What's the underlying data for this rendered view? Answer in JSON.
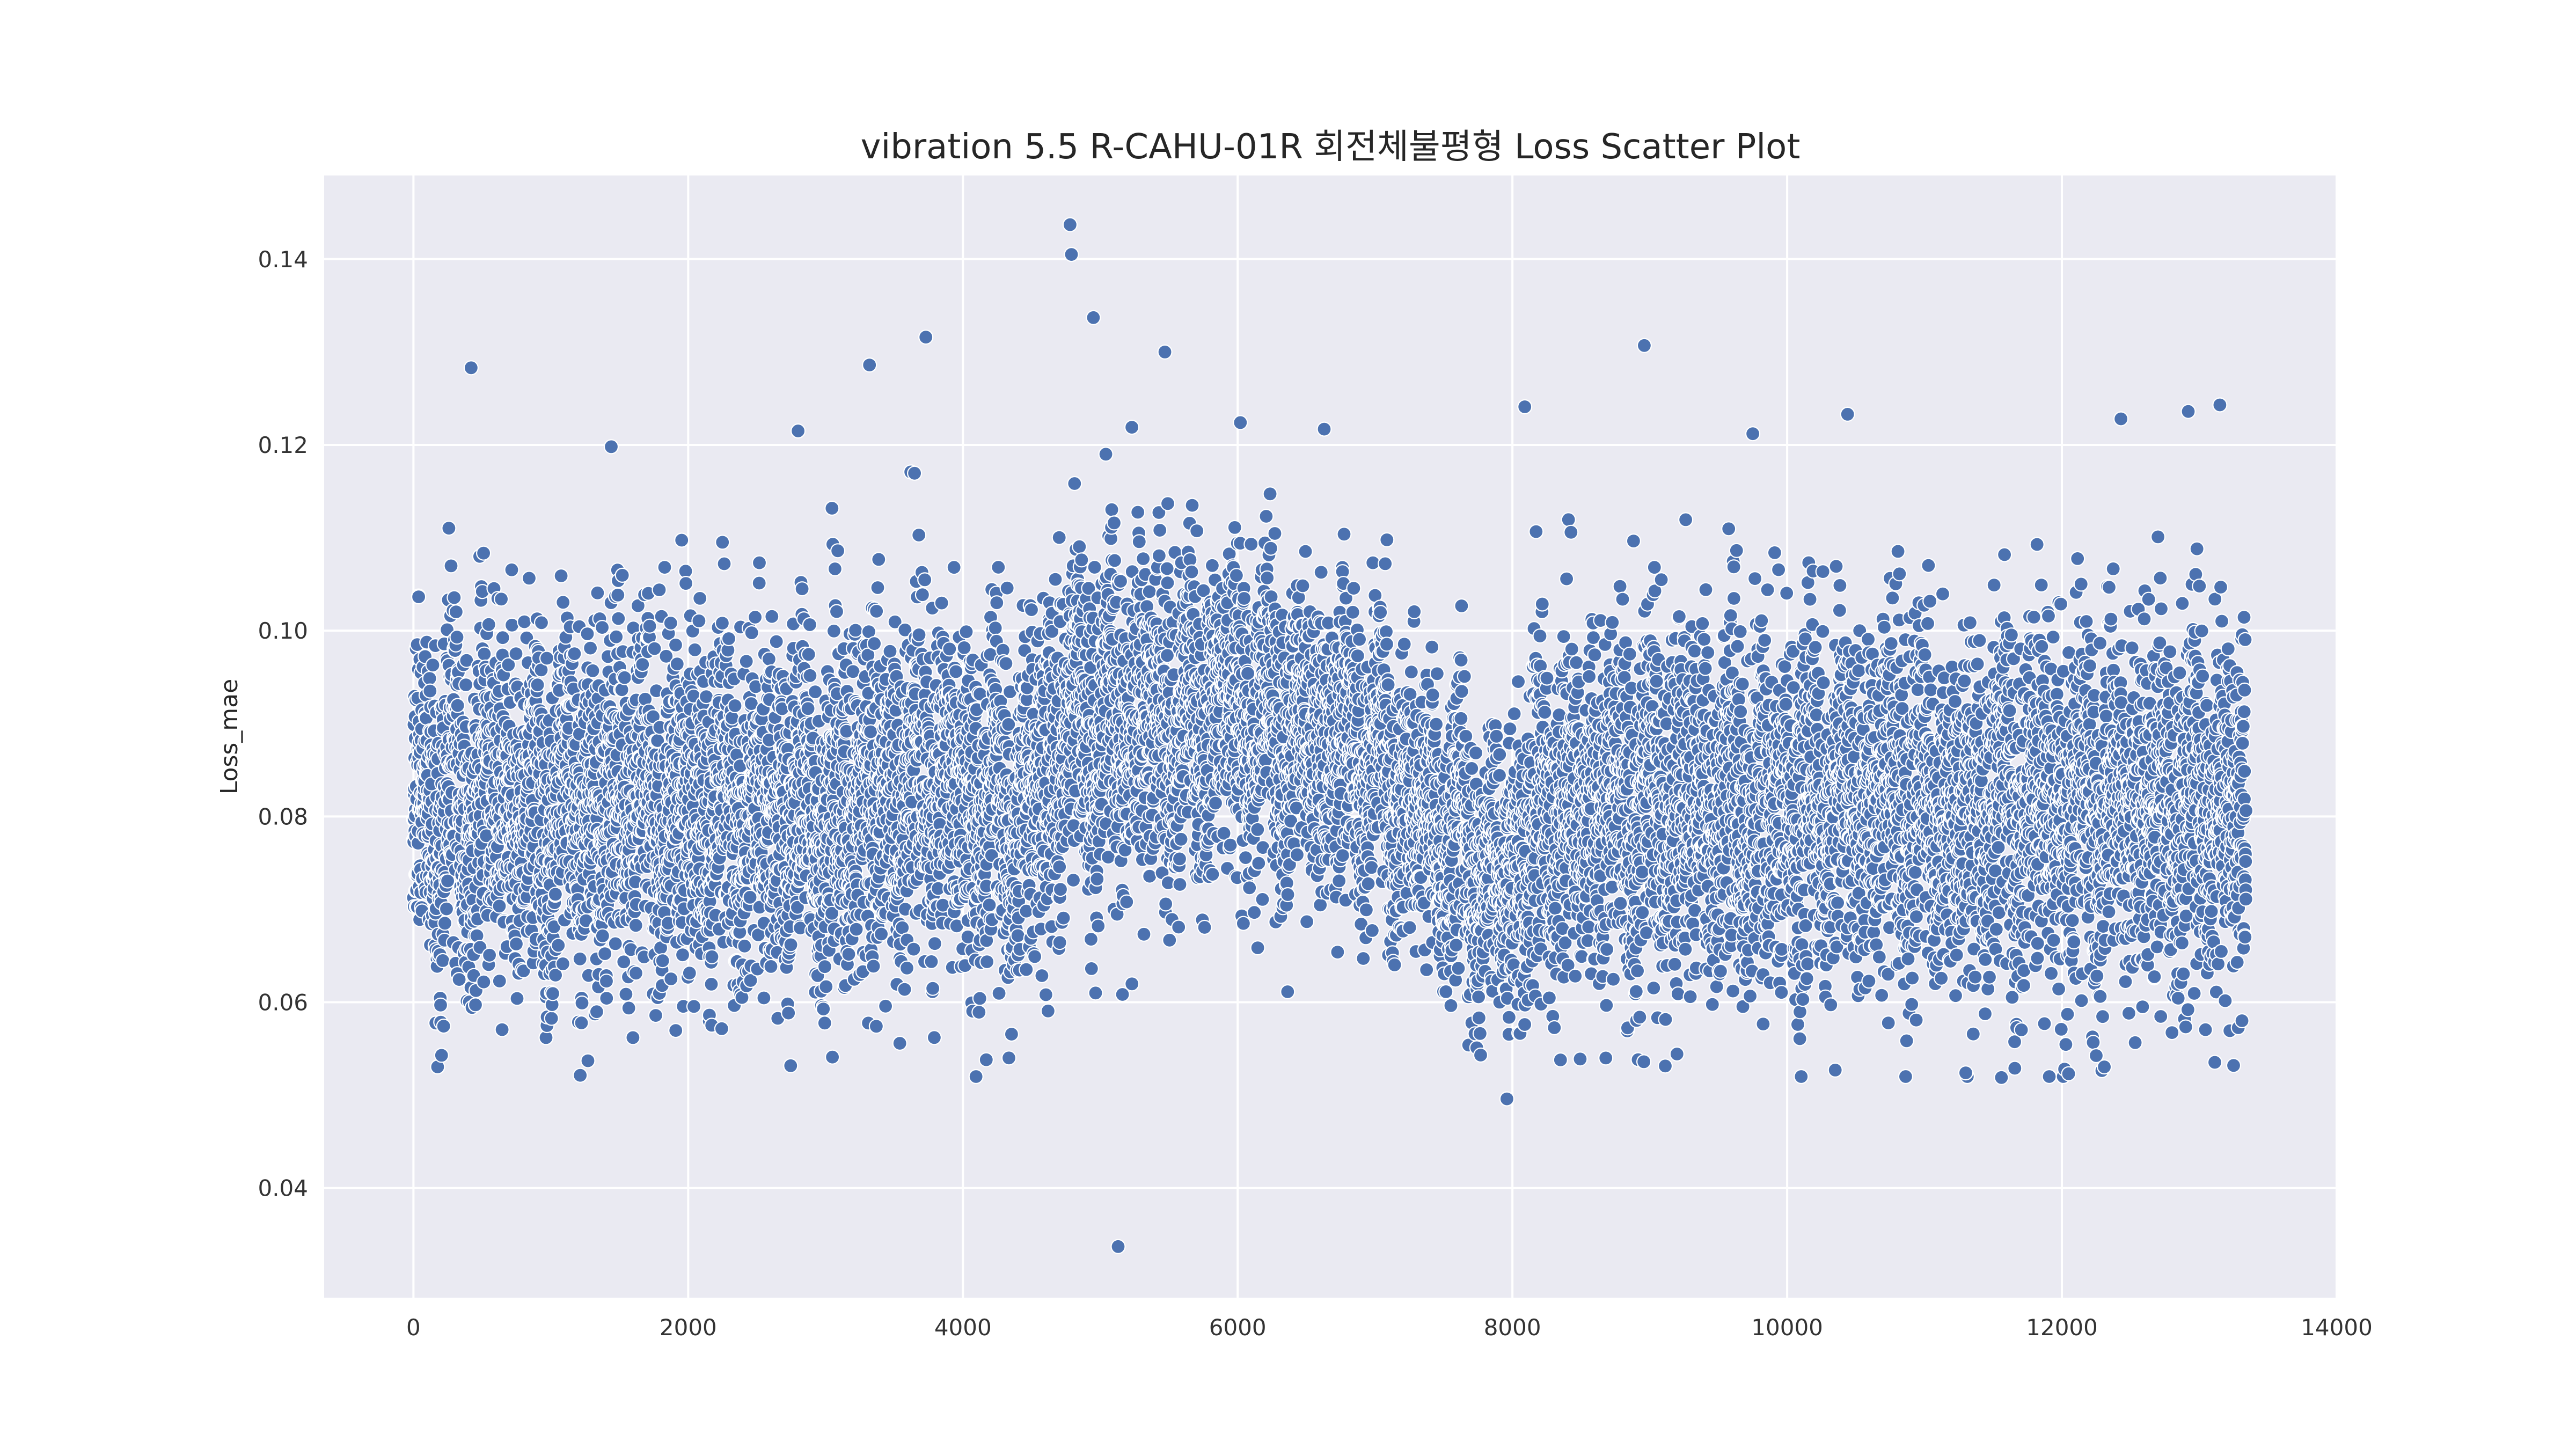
{
  "chart_data": {
    "type": "scatter",
    "title": "vibration 5.5 R-CAHU-01R 회전체불평형 Loss Scatter Plot",
    "xlabel": "",
    "ylabel": "Loss_mae",
    "xlim": [
      -650,
      14000
    ],
    "ylim": [
      0.0282,
      0.149
    ],
    "x_ticks": [
      0,
      2000,
      4000,
      6000,
      8000,
      10000,
      12000,
      14000
    ],
    "x_tick_labels": [
      "0",
      "2000",
      "4000",
      "6000",
      "8000",
      "10000",
      "12000",
      "14000"
    ],
    "y_ticks": [
      0.04,
      0.06,
      0.08,
      0.1,
      0.12,
      0.14
    ],
    "y_tick_labels": [
      "0.04",
      "0.06",
      "0.08",
      "0.10",
      "0.12",
      "0.14"
    ],
    "grid": true,
    "background": "#eaeaf2",
    "marker_color": "#4c72b0",
    "n_points": 13350,
    "x_range": [
      0,
      13340
    ],
    "trend": [
      {
        "x": 0,
        "y_center": 0.081,
        "y_spread": 0.009
      },
      {
        "x": 2000,
        "y_center": 0.081,
        "y_spread": 0.009
      },
      {
        "x": 3000,
        "y_center": 0.08,
        "y_spread": 0.009
      },
      {
        "x": 3800,
        "y_center": 0.084,
        "y_spread": 0.009
      },
      {
        "x": 4400,
        "y_center": 0.08,
        "y_spread": 0.008
      },
      {
        "x": 4800,
        "y_center": 0.09,
        "y_spread": 0.009
      },
      {
        "x": 5500,
        "y_center": 0.091,
        "y_spread": 0.008
      },
      {
        "x": 6200,
        "y_center": 0.09,
        "y_spread": 0.008
      },
      {
        "x": 7000,
        "y_center": 0.086,
        "y_spread": 0.008
      },
      {
        "x": 7500,
        "y_center": 0.079,
        "y_spread": 0.007
      },
      {
        "x": 7950,
        "y_center": 0.071,
        "y_spread": 0.007
      },
      {
        "x": 8200,
        "y_center": 0.081,
        "y_spread": 0.009
      },
      {
        "x": 13340,
        "y_center": 0.081,
        "y_spread": 0.009
      }
    ],
    "notable_points": [
      {
        "x": 4780,
        "y": 0.1437
      },
      {
        "x": 4790,
        "y": 0.1405
      },
      {
        "x": 5470,
        "y": 0.13
      },
      {
        "x": 8960,
        "y": 0.1307
      },
      {
        "x": 420,
        "y": 0.1283
      },
      {
        "x": 3320,
        "y": 0.1286
      },
      {
        "x": 3730,
        "y": 0.1316
      },
      {
        "x": 4950,
        "y": 0.1337
      },
      {
        "x": 1440,
        "y": 0.1198
      },
      {
        "x": 2800,
        "y": 0.1215
      },
      {
        "x": 5230,
        "y": 0.1219
      },
      {
        "x": 6020,
        "y": 0.1224
      },
      {
        "x": 6630,
        "y": 0.1217
      },
      {
        "x": 8090,
        "y": 0.1241
      },
      {
        "x": 9750,
        "y": 0.1212
      },
      {
        "x": 10440,
        "y": 0.1233
      },
      {
        "x": 12430,
        "y": 0.1228
      },
      {
        "x": 12920,
        "y": 0.1236
      },
      {
        "x": 13150,
        "y": 0.1243
      },
      {
        "x": 5130,
        "y": 0.0337
      },
      {
        "x": 7960,
        "y": 0.0496
      },
      {
        "x": 1270,
        "y": 0.0537
      },
      {
        "x": 3050,
        "y": 0.0541
      },
      {
        "x": 8680,
        "y": 0.054
      },
      {
        "x": 10350,
        "y": 0.0527
      },
      {
        "x": 11300,
        "y": 0.0524
      },
      {
        "x": 11560,
        "y": 0.0519
      },
      {
        "x": 13250,
        "y": 0.0532
      }
    ]
  }
}
